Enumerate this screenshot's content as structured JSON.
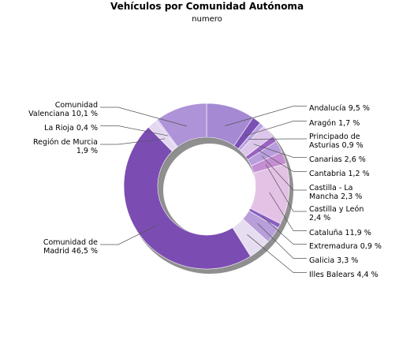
{
  "chart_data": {
    "type": "pie",
    "donut": true,
    "title": "Vehículos por Comunidad Autónoma",
    "subtitle": "numero",
    "slices": [
      {
        "name": "Andalucía",
        "value": 9.5,
        "label_lines": [
          "Andalucía 9,5 %"
        ],
        "color": "#a58ad3"
      },
      {
        "name": "Aragón",
        "value": 1.7,
        "label_lines": [
          "Aragón 1,7 %"
        ],
        "color": "#7a4fb3"
      },
      {
        "name": "Principado de Asturias",
        "value": 0.9,
        "label_lines": [
          "Principado de",
          "Asturias 0,9 %"
        ],
        "color": "#b9a3e0"
      },
      {
        "name": "Canarias",
        "value": 2.6,
        "label_lines": [
          "Canarias 2,6 %"
        ],
        "color": "#dcc6ea"
      },
      {
        "name": "Cantabria",
        "value": 1.2,
        "label_lines": [
          "Cantabria 1,2 %"
        ],
        "color": "#9863c2"
      },
      {
        "name": "Castilla - La Mancha",
        "value": 2.3,
        "label_lines": [
          "Castilla - La",
          "Mancha 2,3 %"
        ],
        "color": "#b99ddd"
      },
      {
        "name": "Castilla y León",
        "value": 2.4,
        "label_lines": [
          "Castilla y León",
          "2,4 %"
        ],
        "color": "#c58ed3"
      },
      {
        "name": "Cataluña",
        "value": 11.9,
        "label_lines": [
          "Cataluña 11,9 %"
        ],
        "color": "#e4c2e6"
      },
      {
        "name": "Extremadura",
        "value": 0.9,
        "label_lines": [
          "Extremadura 0,9 %"
        ],
        "color": "#8a60c5"
      },
      {
        "name": "Galicia",
        "value": 3.3,
        "label_lines": [
          "Galicia 3,3 %"
        ],
        "color": "#b89fdb"
      },
      {
        "name": "Illes Balears",
        "value": 4.4,
        "label_lines": [
          "Illes Balears 4,4 %"
        ],
        "color": "#e6def0"
      },
      {
        "name": "Comunidad de Madrid",
        "value": 46.5,
        "label_lines": [
          "Comunidad de",
          "Madrid 46,5 %"
        ],
        "color": "#7b4db3"
      },
      {
        "name": "Región de Murcia",
        "value": 1.9,
        "label_lines": [
          "Región de Murcia",
          "1,9 %"
        ],
        "color": "#e3d8ef"
      },
      {
        "name": "La Rioja",
        "value": 0.4,
        "label_lines": [
          "La Rioja 0,4 %"
        ],
        "color": "#d9c7ee"
      },
      {
        "name": "Comunidad Valenciana",
        "value": 10.1,
        "label_lines": [
          "Comunidad",
          "Valenciana 10,1 %"
        ],
        "color": "#ae93d8"
      }
    ]
  }
}
